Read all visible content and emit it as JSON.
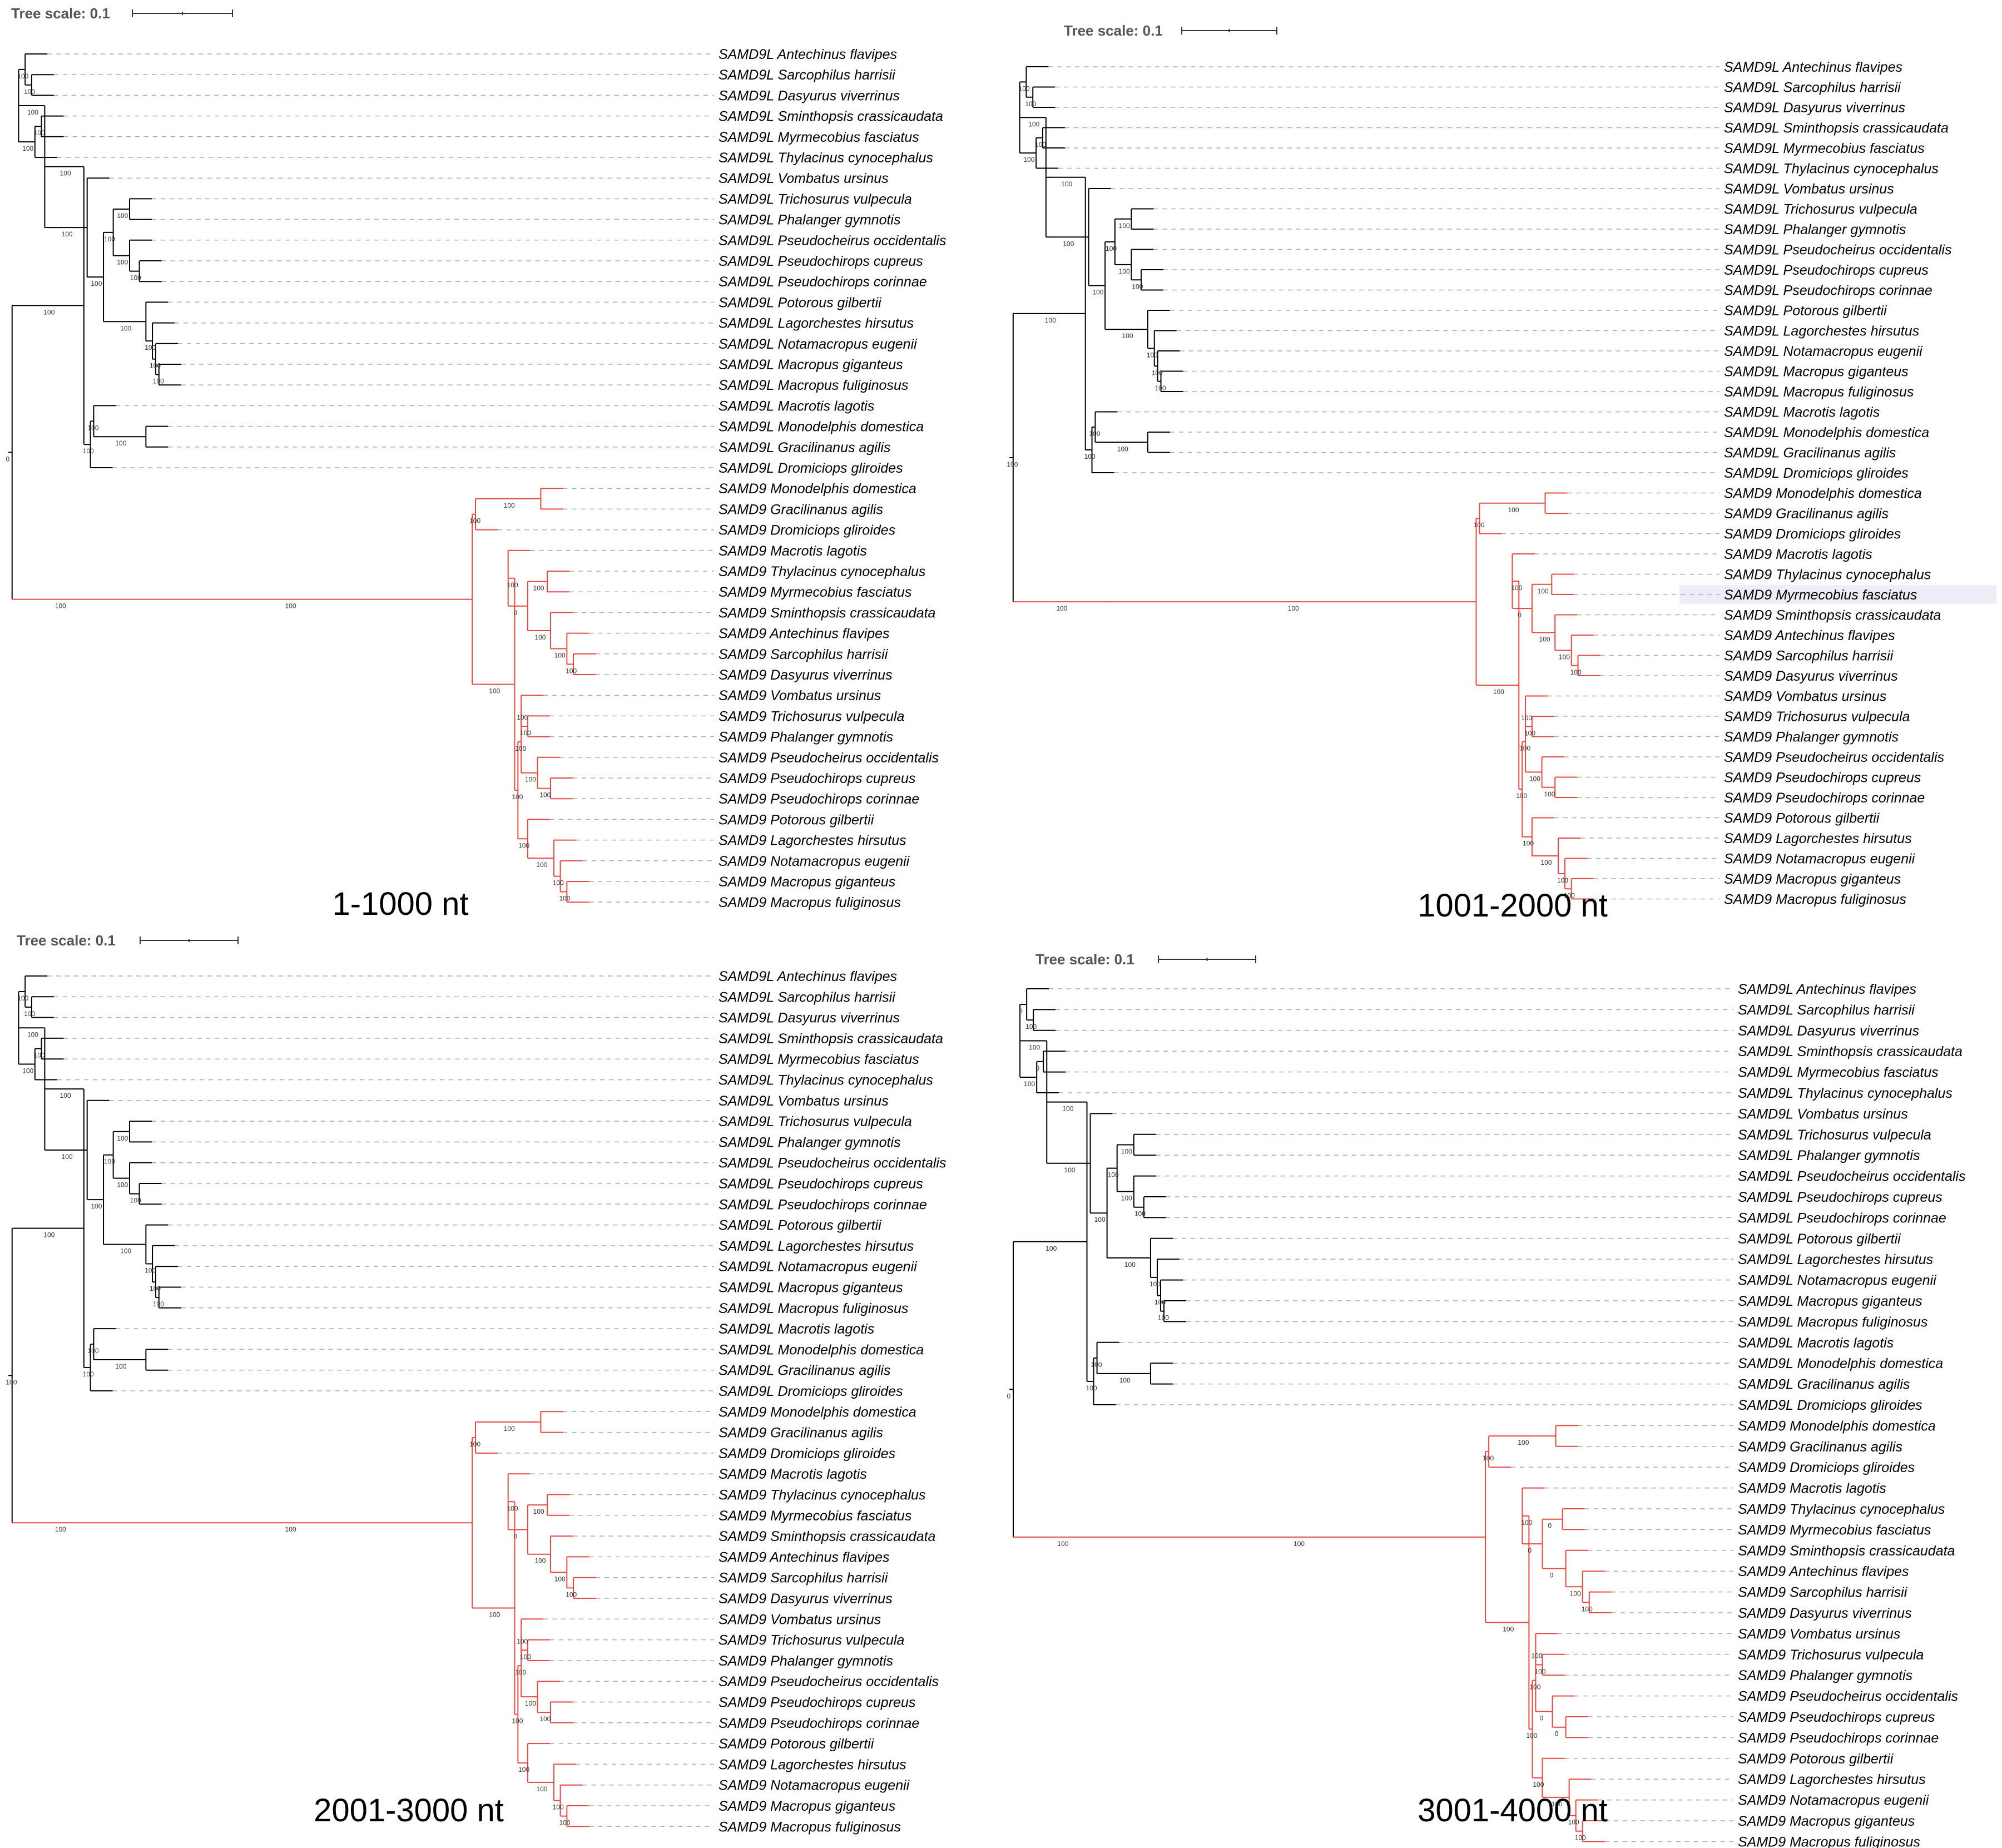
{
  "colors": {
    "samd9l_branch": "#000000",
    "samd9_branch": "#e8473f",
    "leader": "#aaaaaa",
    "highlight": "#eeeef8"
  },
  "scale_bar": {
    "label": "Tree scale: 0.1"
  },
  "taxa": {
    "samd9l": [
      "SAMD9L Antechinus flavipes",
      "SAMD9L Sarcophilus harrisii",
      "SAMD9L Dasyurus viverrinus",
      "SAMD9L Sminthopsis crassicaudata",
      "SAMD9L Myrmecobius fasciatus",
      "SAMD9L Thylacinus cynocephalus",
      "SAMD9L Vombatus ursinus",
      "SAMD9L Trichosurus vulpecula",
      "SAMD9L Phalanger gymnotis",
      "SAMD9L Pseudocheirus occidentalis",
      "SAMD9L Pseudochirops cupreus",
      "SAMD9L Pseudochirops corinnae",
      "SAMD9L Potorous gilbertii",
      "SAMD9L Lagorchestes hirsutus",
      "SAMD9L Notamacropus eugenii",
      "SAMD9L Macropus giganteus",
      "SAMD9L Macropus fuliginosus",
      "SAMD9L Macrotis lagotis",
      "SAMD9L Monodelphis domestica",
      "SAMD9L Gracilinanus agilis",
      "SAMD9L Dromiciops gliroides"
    ],
    "samd9": [
      "SAMD9 Monodelphis domestica",
      "SAMD9 Gracilinanus agilis",
      "SAMD9 Dromiciops gliroides",
      "SAMD9 Macrotis lagotis",
      "SAMD9 Thylacinus cynocephalus",
      "SAMD9 Myrmecobius fasciatus",
      "SAMD9 Sminthopsis crassicaudata",
      "SAMD9 Antechinus flavipes",
      "SAMD9 Sarcophilus harrisii",
      "SAMD9 Dasyurus viverrinus",
      "SAMD9 Vombatus ursinus",
      "SAMD9 Trichosurus vulpecula",
      "SAMD9 Phalanger gymnotis",
      "SAMD9 Pseudocheirus occidentalis",
      "SAMD9 Pseudochirops cupreus",
      "SAMD9 Pseudochirops corinnae",
      "SAMD9 Potorous gilbertii",
      "SAMD9 Lagorchestes hirsutus",
      "SAMD9 Notamacropus eugenii",
      "SAMD9 Macropus giganteus",
      "SAMD9 Macropus fuliginosus"
    ]
  },
  "panels": [
    {
      "title": "1-1000 nt",
      "support": {
        "samd9l_clade": "100",
        "samd9_clade": "100",
        "root": "0",
        "inner": [
          "100",
          "100",
          "100",
          "100",
          "100",
          "100",
          "100",
          "100",
          "100",
          "100",
          "100",
          "100",
          "100",
          "100",
          "100",
          "100",
          "100",
          "100",
          "100",
          "100",
          "100",
          "100",
          "100",
          "100",
          "100",
          "0"
        ]
      }
    },
    {
      "title": "1001-2000 nt",
      "highlighted_taxon": "SAMD9 Myrmecobius fasciatus",
      "support": {
        "samd9l_clade": "100",
        "samd9_clade": "100",
        "root": "100",
        "inner": [
          "100",
          "100",
          "100",
          "100",
          "100",
          "100",
          "100",
          "100",
          "100",
          "100",
          "100",
          "100",
          "100",
          "100",
          "100",
          "100",
          "100",
          "100",
          "100",
          "100",
          "100",
          "100",
          "100",
          "100",
          "100",
          "0"
        ]
      }
    },
    {
      "title": "2001-3000 nt",
      "support": {
        "samd9l_clade": "100",
        "samd9_clade": "100",
        "root": "100",
        "inner": [
          "100",
          "100",
          "100",
          "100",
          "100",
          "100",
          "100",
          "100",
          "100",
          "100",
          "100",
          "100",
          "100",
          "100",
          "100",
          "100",
          "100",
          "100",
          "100",
          "100",
          "100",
          "100",
          "100",
          "100",
          "100",
          "0"
        ]
      }
    },
    {
      "title": "3001-4000 nt",
      "support": {
        "samd9l_clade": "100",
        "samd9_clade": "100",
        "root": "0",
        "inner": [
          "100",
          "0",
          "0",
          "100",
          "100",
          "100",
          "100",
          "100",
          "100",
          "100",
          "100",
          "100",
          "100",
          "100",
          "100",
          "100",
          "100",
          "100",
          "100",
          "100",
          "100",
          "100",
          "100",
          "0",
          "0",
          "0"
        ]
      }
    }
  ]
}
